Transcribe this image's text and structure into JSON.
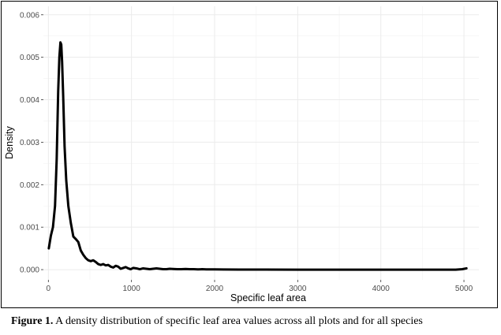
{
  "chart_data": {
    "type": "line",
    "title": "",
    "xlabel": "Specific leaf area",
    "ylabel": "Density",
    "xlim": [
      -60,
      5180
    ],
    "ylim": [
      -0.00024,
      0.0062
    ],
    "xticks": [
      0,
      1000,
      2000,
      3000,
      4000,
      5000
    ],
    "xtick_labels": [
      "0",
      "1000",
      "2000",
      "3000",
      "4000",
      "5000"
    ],
    "yticks": [
      0,
      0.001,
      0.002,
      0.003,
      0.004,
      0.005,
      0.006
    ],
    "ytick_labels": [
      "0.000",
      "0.001",
      "0.002",
      "0.003",
      "0.004",
      "0.005",
      "0.006"
    ],
    "grid": true,
    "legend": "none",
    "line_color": "#000000",
    "series": [
      {
        "x": [
          5,
          30,
          55,
          80,
          100,
          118,
          132,
          145,
          155,
          165,
          178,
          195,
          215,
          240,
          270,
          300,
          330,
          360,
          390,
          420,
          450,
          480,
          510,
          540,
          570,
          600,
          630,
          660,
          690,
          720,
          750,
          780,
          810,
          840,
          870,
          900,
          930,
          960,
          990,
          1020,
          1060,
          1100,
          1140,
          1180,
          1220,
          1260,
          1300,
          1340,
          1380,
          1420,
          1460,
          1500,
          1550,
          1600,
          1650,
          1700,
          1750,
          1800,
          1850,
          1900,
          1950,
          2000,
          2100,
          2300,
          2600,
          3000,
          3500,
          4000,
          4500,
          4900,
          4980,
          5030
        ],
        "y": [
          0.0005,
          0.0008,
          0.001,
          0.0015,
          0.0026,
          0.0042,
          0.005,
          0.00535,
          0.0053,
          0.0049,
          0.0041,
          0.0029,
          0.0021,
          0.0015,
          0.0011,
          0.00078,
          0.00072,
          0.00065,
          0.00045,
          0.00035,
          0.00027,
          0.00022,
          0.0002,
          0.00022,
          0.00018,
          0.00013,
          0.00011,
          0.00013,
          0.0001,
          0.00011,
          7e-05,
          5e-05,
          9e-05,
          7e-05,
          2e-05,
          4e-05,
          6e-05,
          3e-05,
          1e-05,
          4e-05,
          3e-05,
          1e-05,
          3e-05,
          2e-05,
          1e-05,
          2e-05,
          3e-05,
          2e-05,
          1e-05,
          1e-05,
          2e-05,
          1.5e-05,
          1e-05,
          1e-05,
          1.5e-05,
          1e-05,
          1e-05,
          5e-06,
          1e-05,
          5e-06,
          5e-06,
          5e-06,
          3e-06,
          2e-06,
          1e-06,
          0.0,
          0.0,
          0.0,
          0.0,
          0.0,
          1e-05,
          3e-05
        ]
      }
    ]
  },
  "caption": {
    "label": "Figure 1.",
    "text": " A density distribution of specific leaf area values across all plots and for all species"
  }
}
